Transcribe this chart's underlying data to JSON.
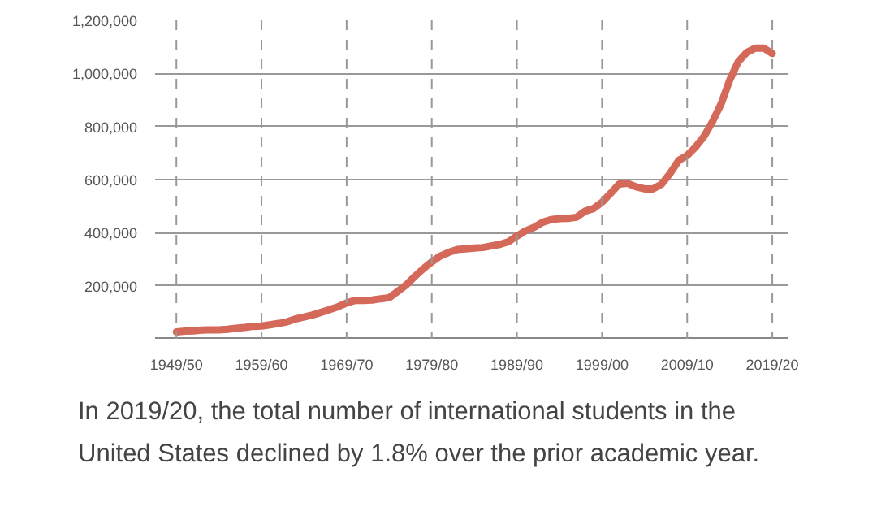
{
  "chart_data": {
    "type": "line",
    "categories": [
      "1949/50",
      null,
      null,
      null,
      null,
      null,
      null,
      null,
      null,
      null,
      "1959/60",
      null,
      null,
      null,
      null,
      null,
      null,
      null,
      null,
      null,
      "1969/70",
      null,
      null,
      null,
      null,
      null,
      null,
      null,
      null,
      null,
      "1979/80",
      null,
      null,
      null,
      null,
      null,
      null,
      null,
      null,
      null,
      "1989/90",
      null,
      null,
      null,
      null,
      null,
      null,
      null,
      null,
      null,
      "1999/00",
      null,
      null,
      null,
      null,
      null,
      null,
      null,
      null,
      null,
      "2009/10",
      null,
      null,
      null,
      null,
      null,
      null,
      null,
      null,
      null,
      "2019/20"
    ],
    "series": [
      {
        "color": "#d4695a",
        "values": [
          26000,
          29000,
          30000,
          33000,
          34000,
          34000,
          36000,
          40000,
          43000,
          47000,
          48000,
          53000,
          58000,
          64000,
          75000,
          82000,
          90000,
          100000,
          110000,
          121000,
          135000,
          145000,
          145000,
          146000,
          151000,
          155000,
          179000,
          203000,
          235000,
          264000,
          290000,
          312000,
          326000,
          337000,
          339000,
          342000,
          344000,
          350000,
          356000,
          366000,
          387000,
          407000,
          420000,
          439000,
          449000,
          453000,
          454000,
          458000,
          481000,
          491000,
          515000,
          548000,
          583000,
          586000,
          573000,
          565000,
          565000,
          583000,
          624000,
          672000,
          691000,
          723000,
          764000,
          820000,
          886000,
          975000,
          1044000,
          1079000,
          1095000,
          1095000,
          1075000
        ]
      }
    ],
    "ylim": [
      0,
      1200000
    ],
    "yticks": [
      {
        "value": 200000,
        "label": "200,000"
      },
      {
        "value": 400000,
        "label": "400,000"
      },
      {
        "value": 600000,
        "label": "600,000"
      },
      {
        "value": 800000,
        "label": "800,000"
      },
      {
        "value": 1000000,
        "label": "1,000,000"
      },
      {
        "value": 1200000,
        "label": "1,200,000"
      }
    ],
    "ref_lines": [
      {
        "axis": "x",
        "value": "1949/50",
        "color": "#999999",
        "line_style": "dashed"
      },
      {
        "axis": "x",
        "value": "1959/60",
        "color": "#999999",
        "line_style": "dashed"
      },
      {
        "axis": "x",
        "value": "1969/70",
        "color": "#999999",
        "line_style": "dashed"
      },
      {
        "axis": "x",
        "value": "1979/80",
        "color": "#999999",
        "line_style": "dashed"
      },
      {
        "axis": "x",
        "value": "1989/90",
        "color": "#999999",
        "line_style": "dashed"
      },
      {
        "axis": "x",
        "value": "1999/00",
        "color": "#999999",
        "line_style": "dashed"
      },
      {
        "axis": "x",
        "value": "2009/10",
        "color": "#999999",
        "line_style": "dashed"
      },
      {
        "axis": "x",
        "value": "2019/20",
        "color": "#999999",
        "line_style": "dashed"
      }
    ],
    "grid": "y",
    "marker": "none",
    "line_style": "solid",
    "annotations": [
      "In 2019/20, the total number of international students in the United States declined by 1.8% over the prior academic year."
    ]
  }
}
